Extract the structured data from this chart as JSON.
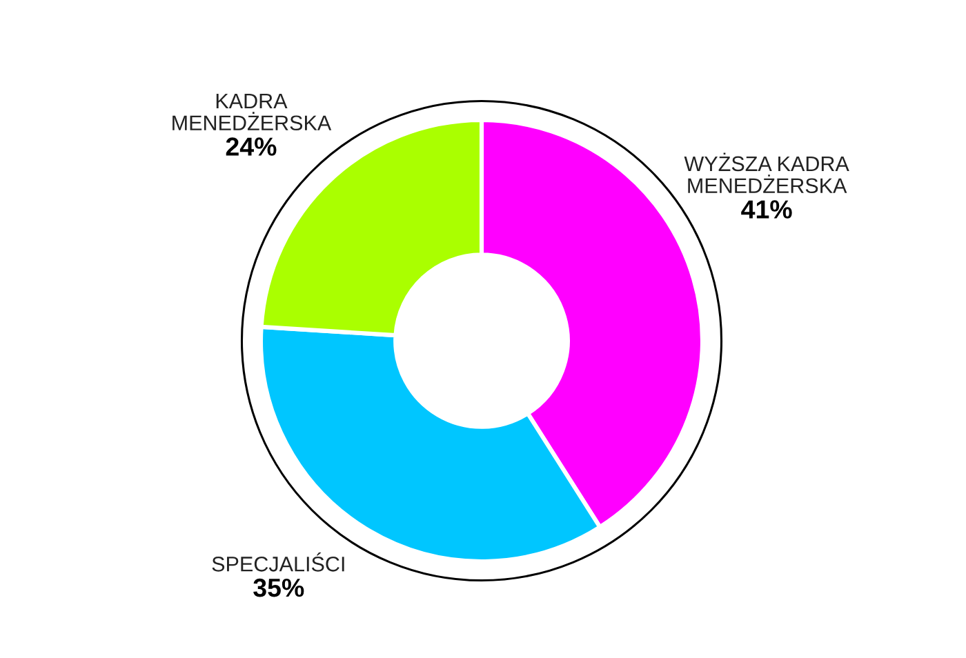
{
  "chart_data": {
    "type": "donut",
    "categories": [
      "WYŻSZA KADRA\nMENEDŻERSKA",
      "SPECJALIŚCI",
      "KADRA\nMENEDŻERSKA"
    ],
    "values": [
      41,
      35,
      24
    ],
    "colors": [
      "#ff00ff",
      "#00c6ff",
      "#aaff00"
    ],
    "value_labels": [
      "41%",
      "35%",
      "24%"
    ]
  }
}
